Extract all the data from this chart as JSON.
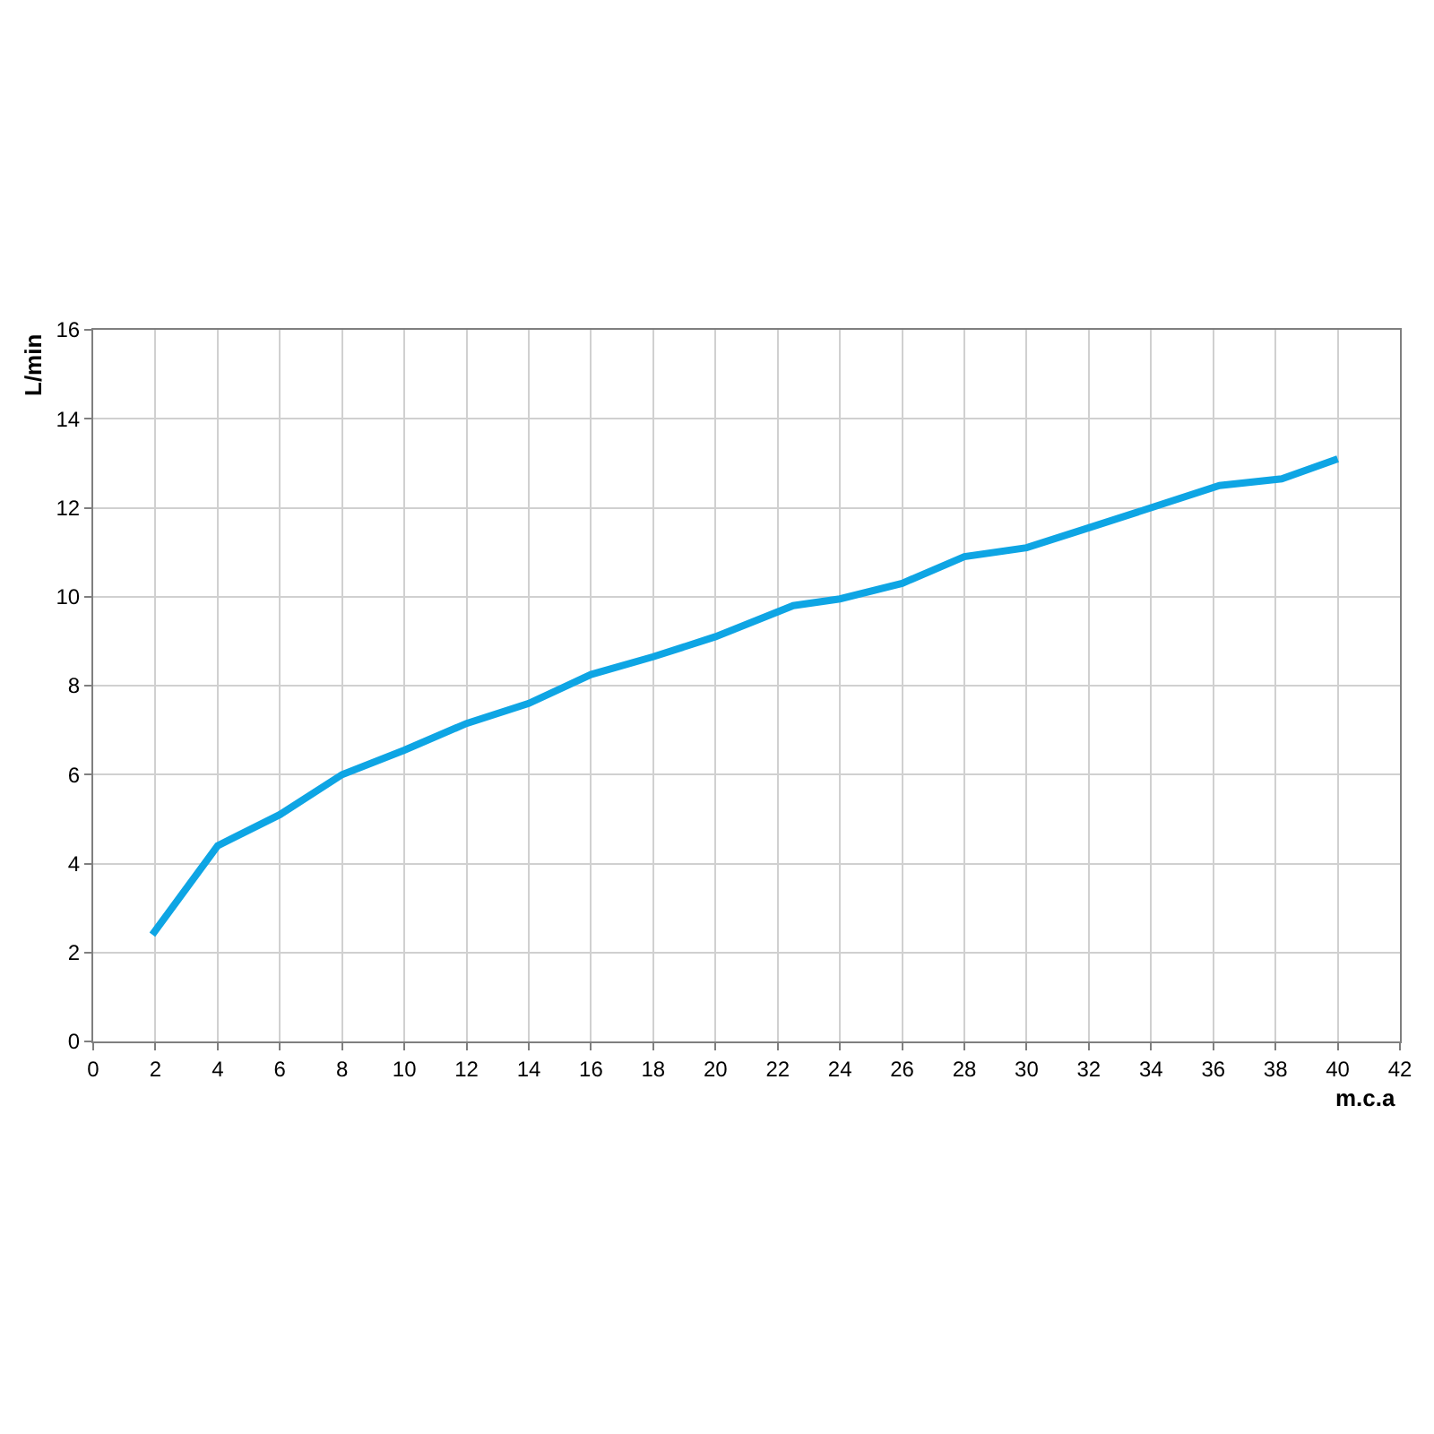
{
  "chart_data": {
    "type": "line",
    "xlabel": "m.c.a",
    "ylabel": "L/min",
    "x": [
      1.9,
      4,
      6,
      8,
      10,
      12,
      14,
      16,
      18,
      20,
      22.5,
      24,
      26,
      28,
      30,
      32,
      34,
      36.2,
      38.2,
      40
    ],
    "series": [
      {
        "color": "#0ea5e4",
        "values": [
          2.4,
          4.4,
          5.1,
          6.0,
          6.55,
          7.15,
          7.6,
          8.25,
          8.65,
          9.1,
          9.8,
          9.95,
          10.3,
          10.9,
          11.1,
          11.55,
          12.0,
          12.5,
          12.65,
          13.1
        ]
      }
    ],
    "xlim": [
      0,
      42
    ],
    "xticks": [
      0,
      2,
      4,
      6,
      8,
      10,
      12,
      14,
      16,
      18,
      20,
      22,
      24,
      26,
      28,
      30,
      32,
      34,
      36,
      38,
      40,
      42
    ],
    "ylim": [
      0,
      16
    ],
    "yticks": [
      0,
      2,
      4,
      6,
      8,
      10,
      12,
      14,
      16
    ],
    "grid": true,
    "legend": false,
    "marker": "none",
    "line_style": "solid"
  }
}
